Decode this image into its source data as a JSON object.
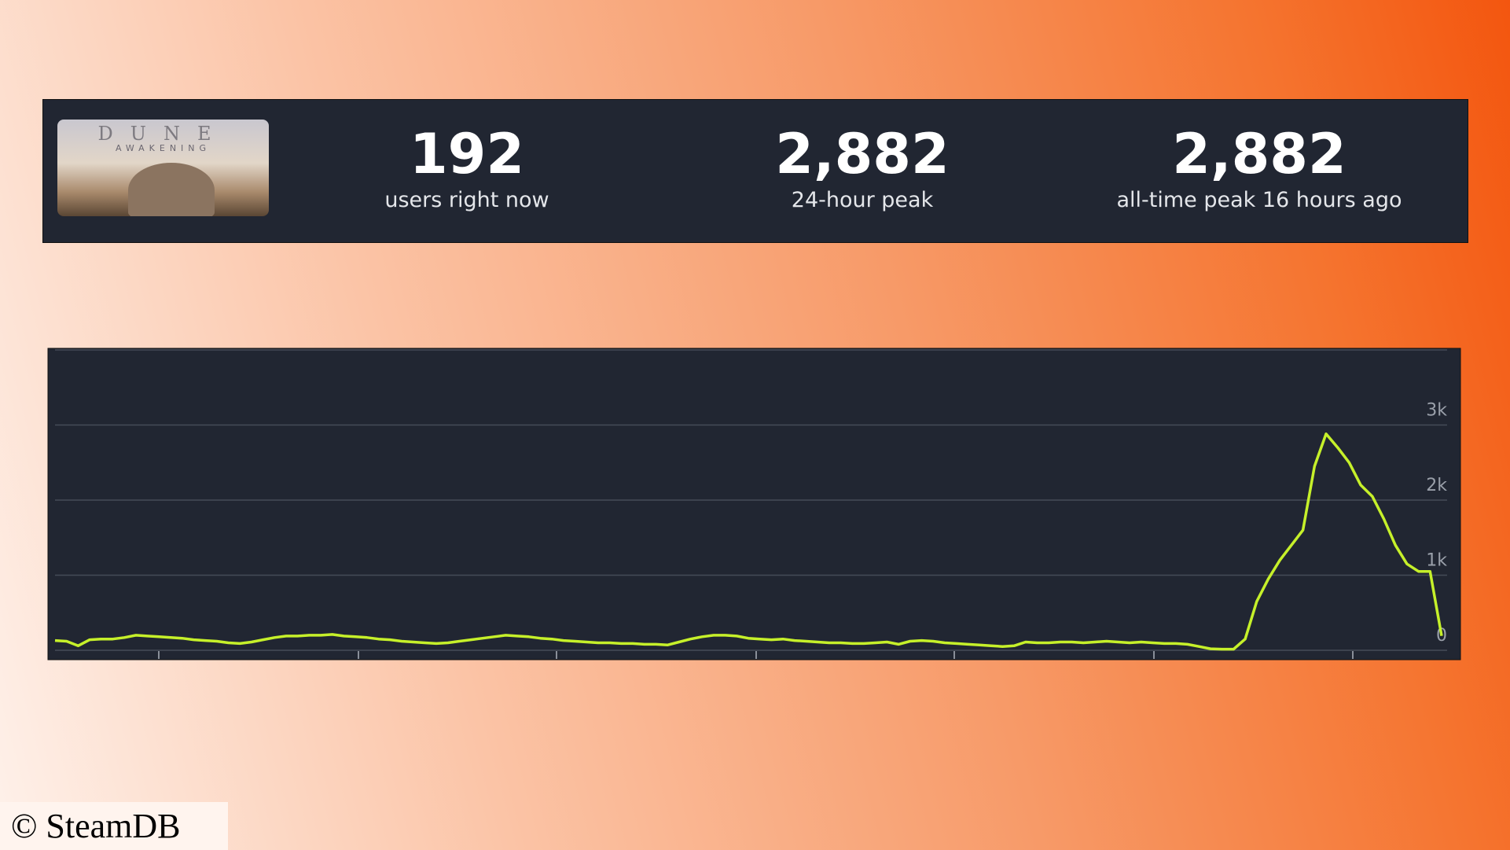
{
  "thumbnail": {
    "title": "DUNE",
    "subtitle": "AWAKENING"
  },
  "stats": [
    {
      "value": "192",
      "label": "users right now"
    },
    {
      "value": "2,882",
      "label": "24-hour peak"
    },
    {
      "value": "2,882",
      "label": "all-time peak 16 hours ago"
    }
  ],
  "chart_data": {
    "type": "line",
    "color": "#c6f02a",
    "grid": true,
    "ylim": [
      0,
      4000
    ],
    "yticks": [
      0,
      {
        "value": 1000,
        "label": "1k"
      },
      {
        "value": 2000,
        "label": "2k"
      },
      {
        "value": 3000,
        "label": "3k"
      },
      {
        "value": 4000,
        "label": ""
      }
    ],
    "values": [
      130,
      120,
      60,
      140,
      150,
      150,
      170,
      200,
      190,
      180,
      170,
      160,
      140,
      130,
      120,
      100,
      90,
      110,
      140,
      170,
      190,
      190,
      200,
      200,
      210,
      190,
      180,
      170,
      150,
      140,
      120,
      110,
      100,
      90,
      100,
      120,
      140,
      160,
      180,
      200,
      190,
      180,
      160,
      150,
      130,
      120,
      110,
      100,
      100,
      90,
      90,
      80,
      80,
      70,
      110,
      150,
      180,
      200,
      200,
      190,
      160,
      150,
      140,
      150,
      130,
      120,
      110,
      100,
      100,
      90,
      90,
      100,
      110,
      80,
      120,
      130,
      120,
      100,
      90,
      80,
      70,
      60,
      50,
      60,
      110,
      100,
      100,
      110,
      110,
      100,
      110,
      120,
      110,
      100,
      110,
      100,
      90,
      90,
      80,
      50,
      20,
      15,
      15,
      150,
      650,
      950,
      1200,
      1400,
      1600,
      2450,
      2882,
      2700,
      2500,
      2200,
      2050,
      1750,
      1400,
      1150,
      1050,
      1050,
      192
    ]
  },
  "copyright": "© SteamDB"
}
